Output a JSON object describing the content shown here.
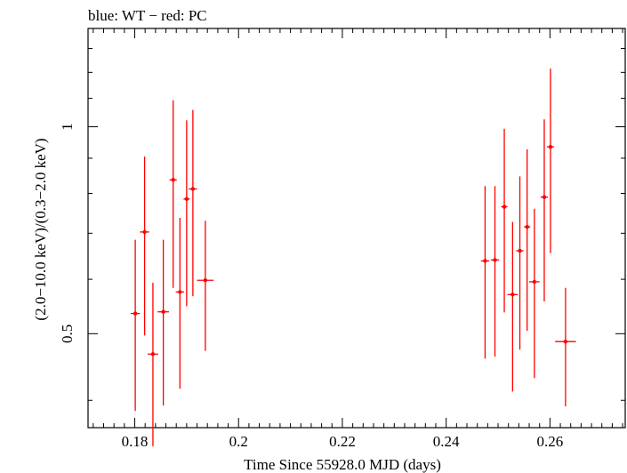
{
  "chart_data": {
    "type": "scatter",
    "title": "blue: WT − red: PC",
    "xlabel": "Time Since 55928.0 MJD (days)",
    "ylabel": "(2.0−10.0 keV)/(0.3−2.0 keV)",
    "xlim": [
      0.171,
      0.2745
    ],
    "ylim": [
      0.365,
      1.39
    ],
    "y_scale": "log",
    "x_ticks": [
      0.18,
      0.2,
      0.22,
      0.24,
      0.26
    ],
    "x_tick_labels": [
      "0.18",
      "0.2",
      "0.22",
      "0.24",
      "0.26"
    ],
    "y_ticks": [
      0.5,
      1
    ],
    "y_tick_labels": [
      "0.5",
      "1"
    ],
    "grid": false,
    "series": [
      {
        "color": "#ff0000",
        "points": [
          {
            "x": 0.1801,
            "xerr": 0.0009,
            "y": 0.535,
            "ylo": 0.386,
            "yhi": 0.685
          },
          {
            "x": 0.1819,
            "xerr": 0.0009,
            "y": 0.703,
            "ylo": 0.497,
            "yhi": 0.905
          },
          {
            "x": 0.1835,
            "xerr": 0.001,
            "y": 0.467,
            "ylo": 0.343,
            "yhi": 0.593
          },
          {
            "x": 0.1855,
            "xerr": 0.0011,
            "y": 0.538,
            "ylo": 0.393,
            "yhi": 0.685
          },
          {
            "x": 0.1874,
            "xerr": 0.0007,
            "y": 0.837,
            "ylo": 0.583,
            "yhi": 1.093
          },
          {
            "x": 0.1887,
            "xerr": 0.0008,
            "y": 0.575,
            "ylo": 0.416,
            "yhi": 0.737
          },
          {
            "x": 0.19,
            "xerr": 0.0006,
            "y": 0.785,
            "ylo": 0.548,
            "yhi": 1.022
          },
          {
            "x": 0.1912,
            "xerr": 0.0008,
            "y": 0.812,
            "ylo": 0.567,
            "yhi": 1.058
          },
          {
            "x": 0.1936,
            "xerr": 0.0016,
            "y": 0.598,
            "ylo": 0.472,
            "yhi": 0.73
          },
          {
            "x": 0.2475,
            "xerr": 0.0008,
            "y": 0.638,
            "ylo": 0.46,
            "yhi": 0.82
          },
          {
            "x": 0.2494,
            "xerr": 0.0008,
            "y": 0.64,
            "ylo": 0.463,
            "yhi": 0.82
          },
          {
            "x": 0.2512,
            "xerr": 0.0006,
            "y": 0.765,
            "ylo": 0.537,
            "yhi": 0.993
          },
          {
            "x": 0.2528,
            "xerr": 0.001,
            "y": 0.57,
            "ylo": 0.412,
            "yhi": 0.727
          },
          {
            "x": 0.2542,
            "xerr": 0.0007,
            "y": 0.66,
            "ylo": 0.474,
            "yhi": 0.847
          },
          {
            "x": 0.2556,
            "xerr": 0.0006,
            "y": 0.715,
            "ylo": 0.505,
            "yhi": 0.927
          },
          {
            "x": 0.257,
            "xerr": 0.001,
            "y": 0.595,
            "ylo": 0.431,
            "yhi": 0.76
          },
          {
            "x": 0.2589,
            "xerr": 0.0007,
            "y": 0.79,
            "ylo": 0.557,
            "yhi": 1.025
          },
          {
            "x": 0.2601,
            "xerr": 0.0007,
            "y": 0.935,
            "ylo": 0.655,
            "yhi": 1.215
          },
          {
            "x": 0.263,
            "xerr": 0.002,
            "y": 0.487,
            "ylo": 0.392,
            "yhi": 0.583
          }
        ]
      }
    ]
  }
}
